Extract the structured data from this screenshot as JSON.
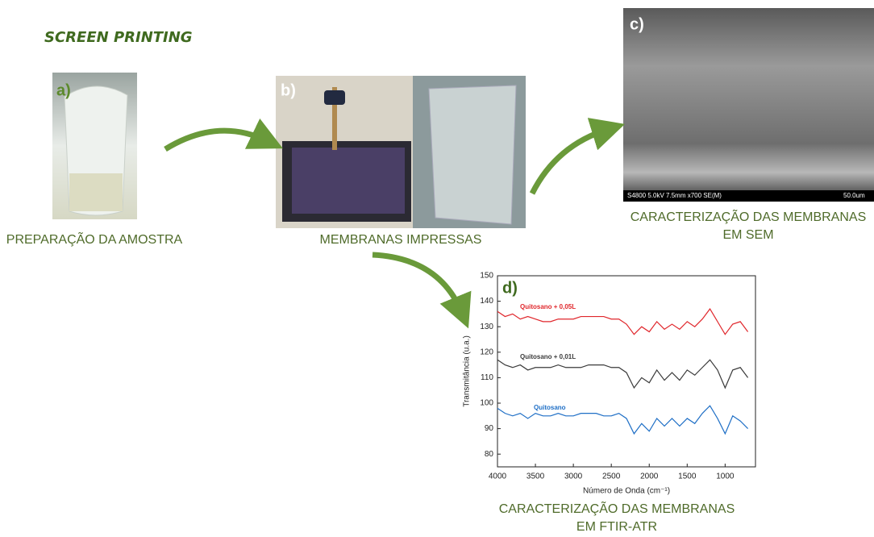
{
  "title": "SCREEN PRINTING",
  "panels": [
    {
      "label": "a)",
      "caption": [
        "PREPARAÇÃO DA AMOSTRA"
      ]
    },
    {
      "label": "b)",
      "caption": [
        "MEMBRANAS IMPRESSAS"
      ]
    },
    {
      "label": "c)",
      "caption": [
        "CARACTERIZAÇÃO DAS MEMBRANAS",
        "EM SEM"
      ],
      "sem_info": "S4800 5.0kV 7.5mm x700 SE(M)",
      "scale_label": "50.0um"
    },
    {
      "label": "d)",
      "caption": [
        "CARACTERIZAÇÃO DAS MEMBRANAS",
        "EM FTIR-ATR"
      ]
    }
  ],
  "chart_data": {
    "type": "line",
    "xlabel": "Número de Onda (cm⁻¹)",
    "ylabel": "Transmitância (u.a.)",
    "x": [
      4000,
      3900,
      3800,
      3700,
      3600,
      3500,
      3400,
      3300,
      3200,
      3100,
      3000,
      2900,
      2800,
      2700,
      2600,
      2500,
      2400,
      2300,
      2200,
      2100,
      2000,
      1900,
      1800,
      1700,
      1600,
      1500,
      1400,
      1300,
      1200,
      1100,
      1000,
      900,
      800,
      700
    ],
    "series": [
      {
        "name": "Quitosano + 0,05L",
        "color": "#e0262b",
        "values": [
          136,
          134,
          135,
          133,
          134,
          133,
          132,
          132,
          133,
          133,
          133,
          134,
          134,
          134,
          134,
          133,
          133,
          131,
          127,
          130,
          128,
          132,
          129,
          131,
          129,
          132,
          130,
          133,
          137,
          132,
          127,
          131,
          132,
          128
        ]
      },
      {
        "name": "Quitosano + 0,01L",
        "color": "#3a3a3a",
        "values": [
          117,
          115,
          114,
          115,
          113,
          114,
          114,
          114,
          115,
          114,
          114,
          114,
          115,
          115,
          115,
          114,
          114,
          112,
          106,
          110,
          108,
          113,
          109,
          112,
          109,
          113,
          111,
          114,
          117,
          113,
          106,
          113,
          114,
          110
        ]
      },
      {
        "name": "Quitosano",
        "color": "#1f6fc6",
        "values": [
          98,
          96,
          95,
          96,
          94,
          96,
          95,
          95,
          96,
          95,
          95,
          96,
          96,
          96,
          95,
          95,
          96,
          94,
          88,
          92,
          89,
          94,
          91,
          94,
          91,
          94,
          92,
          96,
          99,
          94,
          88,
          95,
          93,
          90
        ]
      }
    ],
    "xlim": [
      4000,
      600
    ],
    "ylim": [
      75,
      150
    ],
    "xticks": [
      4000,
      3500,
      3000,
      2500,
      2000,
      1500,
      1000
    ],
    "yticks": [
      80,
      90,
      100,
      110,
      120,
      130,
      140,
      150
    ]
  }
}
